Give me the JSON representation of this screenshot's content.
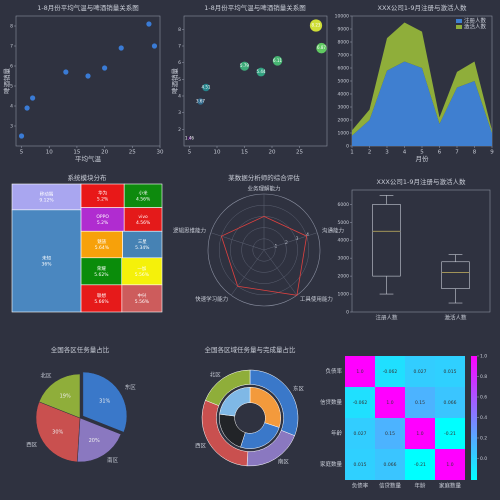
{
  "chart_data": [
    {
      "type": "scatter",
      "title": "1-8月份平均气温与啤酒销量关系图",
      "x_label": "平均气温",
      "y_label": "啤酒销量",
      "x": [
        5,
        6,
        7,
        13,
        17,
        20,
        23,
        28,
        29
      ],
      "values": [
        2.5,
        3.9,
        4.4,
        5.7,
        5.5,
        5.9,
        6.9,
        8.1,
        7
      ],
      "color": "#3a7bd5",
      "xlim": [
        4,
        30
      ],
      "xticks": [
        5,
        10,
        15,
        20,
        25,
        30
      ],
      "ylim": [
        2,
        8.5
      ],
      "yticks": [
        3,
        4,
        5,
        6,
        7,
        8
      ]
    },
    {
      "type": "bubble",
      "title": "1-8月份平均气温与啤酒销量关系图",
      "y_label": "啤酒销量",
      "x": [
        5,
        7,
        8,
        15,
        18,
        21,
        28,
        29
      ],
      "values": [
        1.46,
        3.67,
        4.51,
        5.79,
        5.44,
        6.11,
        8.23,
        6.87
      ],
      "xlim": [
        4,
        30
      ],
      "xticks": [
        5,
        10,
        15,
        20,
        25
      ],
      "ylim": [
        1,
        8.8
      ],
      "yticks": [
        2,
        3,
        4,
        5,
        6,
        7,
        8
      ]
    },
    {
      "type": "area",
      "title": "XXX公司1-9月注册与激活人数",
      "x_label": "月份",
      "x": [
        1,
        2,
        3,
        4,
        5,
        6,
        7,
        8,
        9
      ],
      "series": [
        {
          "name": "注册人数",
          "color": "#3f7fd0",
          "values": [
            800,
            2000,
            5800,
            6500,
            6000,
            1700,
            4500,
            5000,
            1000
          ]
        },
        {
          "name": "激活人数",
          "color": "#8fae3a",
          "values": [
            400,
            800,
            2500,
            3000,
            2800,
            500,
            1200,
            1500,
            200
          ]
        }
      ],
      "legend": "upper right",
      "xlim": [
        1,
        9
      ],
      "xticks": [
        1,
        2,
        3,
        4,
        5,
        6,
        7,
        8,
        9
      ],
      "ylim": [
        0,
        10000
      ],
      "yticks": [
        0,
        1000,
        2000,
        3000,
        4000,
        5000,
        6000,
        7000,
        8000,
        9000,
        10000
      ]
    },
    {
      "type": "treemap",
      "title": "系统模块分布",
      "categories": [
        "移动端",
        "未知",
        "华为",
        "小米",
        "OPPO",
        "vivo",
        "魅族",
        "三星",
        "荣耀",
        "一加",
        "联想",
        "中兴"
      ],
      "values": [
        9.12,
        36,
        5.2,
        4.56,
        5.2,
        4.56,
        5.64,
        5.34,
        5.62,
        5.56,
        5.66,
        5.56
      ],
      "value_labels": [
        "9.12%",
        "36%",
        "5.2%",
        "4.56%",
        "5.2%",
        "4.56%",
        "5.64%",
        "5.34%",
        "5.62%",
        "5.56%",
        "5.66%",
        "5.56%"
      ],
      "colors": [
        "#a9a6f0",
        "#4a87c0",
        "#e81818",
        "#0e8a0e",
        "#b02cd0",
        "#e41a1a",
        "#f7a10a",
        "#4682b4",
        "#0a8c0a",
        "#f5f10a",
        "#e61a1a",
        "#cd5c5c"
      ]
    },
    {
      "type": "radar",
      "title": "某数据分析师的综合评估",
      "categories": [
        "业务理解能力",
        "沟通能力",
        "工具使用能力",
        "快速学习能力",
        "逻辑思维能力"
      ],
      "values": [
        3,
        4,
        5,
        4,
        4
      ],
      "color": "#e0413f",
      "rlim": [
        0,
        5
      ],
      "rticks": [
        1,
        2,
        3,
        4
      ]
    },
    {
      "type": "box",
      "title": "XXX公司1-9月注册与激活人数",
      "categories": [
        "注册人数",
        "激活人数"
      ],
      "stats": [
        [
          1000,
          2000,
          4500,
          6000,
          6500
        ],
        [
          500,
          1300,
          2200,
          2800,
          3200
        ]
      ],
      "ylim": [
        0,
        6800
      ],
      "yticks": [
        0,
        1000,
        2000,
        3000,
        4000,
        5000,
        6000
      ]
    },
    {
      "type": "pie",
      "title": "全国各区任务量占比",
      "categories": [
        "东区",
        "南区",
        "西区",
        "北区"
      ],
      "values": [
        31,
        20,
        30,
        19
      ],
      "value_labels": [
        "31%",
        "20%",
        "30%",
        "19%"
      ],
      "colors": [
        "#3a78c9",
        "#8a78c0",
        "#c9504f",
        "#8fae3a"
      ],
      "explode": [
        0.08,
        0,
        0,
        0
      ]
    },
    {
      "type": "donut",
      "title": "全国各区域任务量与完成量占比",
      "categories": [
        "东区",
        "南区",
        "西区",
        "北区"
      ],
      "values": [
        31,
        20,
        30,
        19
      ],
      "colors": [
        "#3a78c9",
        "#8a78c0",
        "#c9504f",
        "#8fae3a"
      ],
      "inner_values": [
        30,
        25,
        22,
        23
      ],
      "inner_colors": [
        "#f39a3c",
        "#3a78c9",
        "#222428",
        "#7fb8e6"
      ]
    },
    {
      "type": "heatmap",
      "categories": [
        "负债率",
        "信贷数量",
        "年龄",
        "家庭数量"
      ],
      "values": [
        [
          1,
          -0.062,
          0.027,
          0.015
        ],
        [
          -0.062,
          1,
          0.15,
          0.066
        ],
        [
          0.027,
          0.15,
          1,
          -0.21
        ],
        [
          0.015,
          0.066,
          -0.21,
          1
        ]
      ],
      "value_labels": [
        [
          "1.0",
          "-0.062",
          "0.027",
          "0.015"
        ],
        [
          "-0.062",
          "1.0",
          "0.15",
          "0.066"
        ],
        [
          "0.027",
          "0.15",
          "1.0",
          "-0.21"
        ],
        [
          "0.015",
          "0.066",
          "-0.21",
          "1.0"
        ]
      ],
      "vlim": [
        -0.21,
        1
      ],
      "cticks": [
        {
          "value": 0,
          "label": "0.0"
        },
        0.2,
        0.4,
        0.6,
        0.8,
        {
          "value": 1,
          "label": "1.0"
        }
      ]
    }
  ]
}
